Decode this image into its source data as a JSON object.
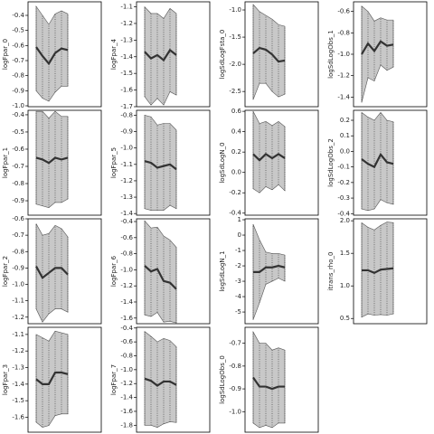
{
  "chart_data": [
    {
      "type": "band",
      "ylabel": "logFpar_0",
      "ylim": [
        -1.006,
        -0.31
      ],
      "yticks": [
        -0.4,
        -0.5,
        -0.6,
        -0.7,
        -0.8,
        -0.9,
        {
          "value": -1.0,
          "label": "-1.0"
        }
      ],
      "color": "#333333",
      "band_color": "#c8c8c8",
      "values": [
        -0.61,
        -0.67,
        -0.72,
        -0.65,
        -0.62,
        -0.63
      ],
      "upper": [
        -0.34,
        -0.4,
        -0.46,
        -0.39,
        -0.37,
        -0.39
      ],
      "lower": [
        -0.9,
        -0.95,
        -0.97,
        -0.91,
        -0.87,
        -0.87
      ]
    },
    {
      "type": "band",
      "ylabel": "logFpar_1",
      "ylim": [
        -0.984,
        -0.374
      ],
      "yticks": [
        -0.4,
        -0.5,
        -0.6,
        -0.7,
        -0.8,
        -0.9
      ],
      "color": "#333333",
      "band_color": "#c8c8c8",
      "values": [
        -0.65,
        -0.66,
        -0.68,
        -0.65,
        -0.66,
        -0.65
      ],
      "upper": [
        -0.38,
        -0.38,
        -0.42,
        -0.38,
        -0.41,
        -0.41
      ],
      "lower": [
        -0.92,
        -0.93,
        -0.94,
        -0.91,
        -0.91,
        -0.89
      ]
    },
    {
      "type": "band",
      "ylabel": "logFpar_2",
      "ylim": [
        -1.24,
        -0.6
      ],
      "yticks": [
        -0.6,
        -0.7,
        -0.8,
        -0.9,
        {
          "value": -1.0,
          "label": "-1.0"
        },
        -1.1,
        -1.2
      ],
      "color": "#333333",
      "band_color": "#c8c8c8",
      "values": [
        -0.89,
        -0.96,
        -0.93,
        -0.9,
        -0.9,
        -0.94
      ],
      "upper": [
        -0.63,
        -0.7,
        -0.69,
        -0.64,
        -0.66,
        -0.71
      ],
      "lower": [
        -1.15,
        -1.23,
        -1.18,
        -1.15,
        -1.15,
        -1.17
      ]
    },
    {
      "type": "band",
      "ylabel": "logFpar_3",
      "ylim": [
        -1.69,
        -1.057
      ],
      "yticks": [
        -1.1,
        -1.2,
        -1.3,
        -1.4,
        -1.5,
        -1.6
      ],
      "color": "#333333",
      "band_color": "#c8c8c8",
      "values": [
        -1.37,
        -1.4,
        -1.4,
        -1.33,
        -1.33,
        -1.34
      ],
      "upper": [
        -1.1,
        -1.12,
        -1.14,
        -1.08,
        -1.09,
        -1.1
      ],
      "lower": [
        -1.63,
        -1.66,
        -1.65,
        -1.59,
        -1.58,
        -1.58
      ]
    },
    {
      "type": "band",
      "ylabel": "logFpar_4",
      "ylim": [
        -1.7,
        -1.07
      ],
      "yticks": [
        -1.1,
        -1.2,
        -1.3,
        -1.4,
        -1.5,
        -1.6,
        -1.7
      ],
      "color": "#333333",
      "band_color": "#c8c8c8",
      "values": [
        -1.37,
        -1.41,
        -1.39,
        -1.42,
        -1.36,
        -1.39
      ],
      "upper": [
        -1.1,
        -1.14,
        -1.14,
        -1.17,
        -1.11,
        -1.14
      ],
      "lower": [
        -1.64,
        -1.69,
        -1.65,
        -1.69,
        -1.61,
        -1.63
      ]
    },
    {
      "type": "band",
      "ylabel": "logFpar_5",
      "ylim": [
        -1.41,
        -0.77
      ],
      "yticks": [
        -0.8,
        -0.9,
        {
          "value": -1.0,
          "label": "-1.0"
        },
        -1.1,
        -1.2,
        -1.3,
        -1.4
      ],
      "color": "#333333",
      "band_color": "#c8c8c8",
      "values": [
        -1.08,
        -1.09,
        -1.12,
        -1.11,
        -1.1,
        -1.13
      ],
      "upper": [
        -0.8,
        -0.81,
        -0.86,
        -0.85,
        -0.85,
        -0.89
      ],
      "lower": [
        -1.37,
        -1.38,
        -1.38,
        -1.38,
        -1.35,
        -1.37
      ]
    },
    {
      "type": "band",
      "ylabel": "logFpar_6",
      "ylim": [
        -1.67,
        -0.366
      ],
      "yticks": [
        -0.4,
        -0.6,
        -0.8,
        {
          "value": -1.0,
          "label": "-1.0"
        },
        -1.2,
        -1.4,
        -1.6
      ],
      "color": "#333333",
      "band_color": "#c8c8c8",
      "values": [
        -0.95,
        -1.02,
        -0.99,
        -1.14,
        -1.16,
        -1.24
      ],
      "upper": [
        -0.39,
        -0.48,
        -0.47,
        -0.58,
        -0.63,
        -0.72
      ],
      "lower": [
        -1.56,
        -1.58,
        -1.53,
        -1.65,
        -1.64,
        -1.66
      ]
    },
    {
      "type": "band",
      "ylabel": "logFpar_7",
      "ylim": [
        -1.9,
        -0.39
      ],
      "yticks": [
        -0.4,
        -0.6,
        -0.8,
        {
          "value": -1.0,
          "label": "-1.0"
        },
        -1.2,
        -1.4,
        -1.6,
        -1.8
      ],
      "color": "#333333",
      "band_color": "#c8c8c8",
      "values": [
        -1.13,
        -1.16,
        -1.23,
        -1.17,
        -1.17,
        -1.22
      ],
      "upper": [
        -0.45,
        -0.52,
        -0.6,
        -0.55,
        -0.58,
        -0.67
      ],
      "lower": [
        -1.8,
        -1.8,
        -1.83,
        -1.78,
        -1.75,
        -1.76
      ]
    },
    {
      "type": "band",
      "ylabel": "logSdLogFsta_0",
      "ylim": [
        -2.78,
        -0.85
      ],
      "yticks": [
        {
          "value": -1.0,
          "label": "-1.0"
        },
        -1.5,
        {
          "value": -2.0,
          "label": "-2.0"
        },
        -2.5
      ],
      "color": "#333333",
      "band_color": "#c8c8c8",
      "values": [
        -1.8,
        -1.7,
        -1.73,
        -1.82,
        -1.95,
        -1.93
      ],
      "upper": [
        -0.9,
        -1.03,
        -1.1,
        -1.17,
        -1.27,
        -1.3
      ],
      "lower": [
        -2.65,
        -2.35,
        -2.35,
        -2.5,
        -2.6,
        -2.55
      ]
    },
    {
      "type": "band",
      "ylabel": "logSdLogN_0",
      "ylim": [
        -0.42,
        0.61
      ],
      "yticks": [
        0.6,
        0.4,
        0.2,
        {
          "value": 0,
          "label": "0.0"
        },
        -0.2,
        -0.4
      ],
      "color": "#333333",
      "band_color": "#c8c8c8",
      "values": [
        0.18,
        0.12,
        0.18,
        0.14,
        0.18,
        0.14
      ],
      "upper": [
        0.6,
        0.48,
        0.5,
        0.46,
        0.5,
        0.45
      ],
      "lower": [
        -0.16,
        -0.2,
        -0.14,
        -0.17,
        -0.12,
        -0.18
      ]
    },
    {
      "type": "band",
      "ylabel": "logSdLogN_1",
      "ylim": [
        -5.76,
        1.06
      ],
      "yticks": [
        1,
        0,
        -1,
        -2,
        -3,
        -4,
        -5
      ],
      "color": "#333333",
      "band_color": "#c8c8c8",
      "values": [
        -2.4,
        -2.4,
        -2.1,
        -2.1,
        -2.0,
        -2.1
      ],
      "upper": [
        0.7,
        -0.3,
        -1.1,
        -1.2,
        -1.2,
        -1.3
      ],
      "lower": [
        -5.5,
        -4.4,
        -3.2,
        -3.0,
        -2.8,
        -3.0
      ]
    },
    {
      "type": "band",
      "ylabel": "logSdLogObs_0",
      "ylim": [
        -1.09,
        -0.63
      ],
      "yticks": [
        -0.7,
        -0.8,
        -0.9,
        {
          "value": -1.0,
          "label": "-1.0"
        }
      ],
      "color": "#333333",
      "band_color": "#c8c8c8",
      "values": [
        -0.85,
        -0.89,
        -0.89,
        -0.9,
        -0.89,
        -0.89
      ],
      "upper": [
        -0.65,
        -0.7,
        -0.7,
        -0.73,
        -0.72,
        -0.73
      ],
      "lower": [
        -1.05,
        -1.07,
        -1.06,
        -1.07,
        -1.05,
        -1.05
      ]
    },
    {
      "type": "band",
      "ylabel": "logSdLogObs_1",
      "ylim": [
        -1.49,
        -0.51
      ],
      "yticks": [
        -0.6,
        -0.8,
        {
          "value": -1.0,
          "label": "-1.0"
        },
        -1.2,
        -1.4
      ],
      "color": "#333333",
      "band_color": "#c8c8c8",
      "values": [
        -1.0,
        -0.9,
        -0.97,
        -0.88,
        -0.92,
        -0.91
      ],
      "upper": [
        -0.55,
        -0.6,
        -0.69,
        -0.66,
        -0.68,
        -0.68
      ],
      "lower": [
        -1.45,
        -1.22,
        -1.25,
        -1.1,
        -1.15,
        -1.12
      ]
    },
    {
      "type": "band",
      "ylabel": "logSdLogObs_2",
      "ylim": [
        -0.41,
        0.264
      ],
      "yticks": [
        0.2,
        0.1,
        {
          "value": 0,
          "label": "0.0"
        },
        -0.1,
        -0.2,
        -0.3,
        -0.4
      ],
      "color": "#333333",
      "band_color": "#c8c8c8",
      "values": [
        -0.05,
        -0.08,
        -0.1,
        -0.02,
        -0.07,
        -0.08
      ],
      "upper": [
        0.25,
        0.22,
        0.2,
        0.25,
        0.2,
        0.19
      ],
      "lower": [
        -0.37,
        -0.38,
        -0.37,
        -0.31,
        -0.33,
        -0.34
      ]
    },
    {
      "type": "band",
      "ylabel": "itrans_rho_0",
      "ylim": [
        0.42,
        2.03
      ],
      "yticks": [
        {
          "value": 2,
          "label": "2.0"
        },
        1.5,
        {
          "value": 1,
          "label": "1.0"
        },
        0.5
      ],
      "color": "#333333",
      "band_color": "#c8c8c8",
      "values": [
        1.24,
        1.24,
        1.2,
        1.25,
        1.26,
        1.27
      ],
      "upper": [
        1.97,
        1.9,
        1.86,
        1.93,
        1.98,
        1.97
      ],
      "lower": [
        0.52,
        0.57,
        0.55,
        0.56,
        0.55,
        0.57
      ]
    }
  ]
}
